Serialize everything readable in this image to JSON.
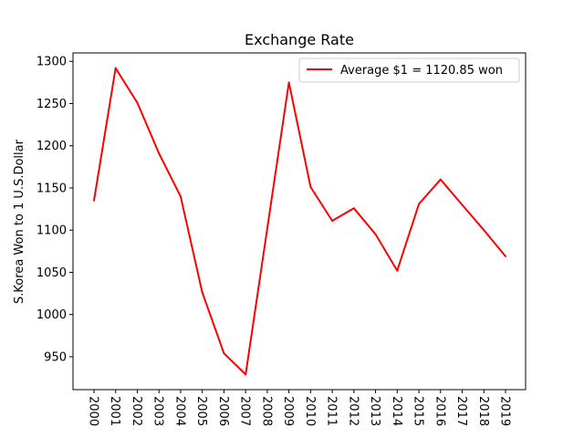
{
  "chart_data": {
    "type": "line",
    "title": "Exchange Rate",
    "xlabel": "",
    "ylabel": "S.Korea Won to 1 U.S.Dollar",
    "x": [
      "2000",
      "2001",
      "2002",
      "2003",
      "2004",
      "2005",
      "2006",
      "2007",
      "2008",
      "2009",
      "2010",
      "2011",
      "2012",
      "2013",
      "2014",
      "2015",
      "2016",
      "2017",
      "2018",
      "2019"
    ],
    "series": [
      {
        "name": "Average $1 = 1120.85 won",
        "color": "#ff0000",
        "values": [
          1135,
          1292,
          1251,
          1191,
          1140,
          1026,
          954,
          929,
          1102,
          1275,
          1151,
          1111,
          1126,
          1095,
          1052,
          1131,
          1160,
          1130,
          1100,
          1069
        ]
      }
    ],
    "yticks": [
      950,
      1000,
      1050,
      1100,
      1150,
      1200,
      1250,
      1300
    ],
    "ylim": [
      911,
      1310
    ],
    "legend_position": "top-right",
    "grid": false
  }
}
